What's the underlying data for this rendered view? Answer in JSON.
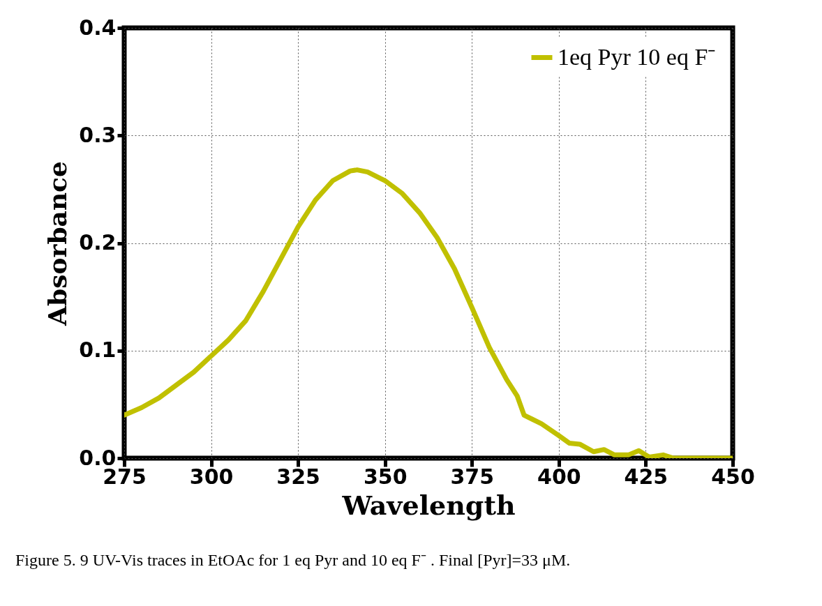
{
  "chart_data": {
    "type": "line",
    "xlabel": "Wavelength",
    "ylabel": "Absorbance",
    "annotations": [
      "Figure 5. 9 UV-Vis traces in EtOAc for 1 eq Pyr and 10 eq F⁻ . Final [Pyr]=33 μM."
    ],
    "xlim": [
      275,
      450
    ],
    "xticks": [
      275,
      300,
      325,
      350,
      375,
      400,
      425,
      450
    ],
    "ylim": [
      0,
      0.4
    ],
    "yticks": [
      {
        "value": 0,
        "label": "0.0"
      },
      0.1,
      0.2,
      0.3,
      0.4
    ],
    "grid": true,
    "legend": "top right",
    "line_style": "solid",
    "marker": "none",
    "series": [
      {
        "name": "1eq Pyr 10 eq F⁻",
        "color": "#c0c000",
        "x": [
          275,
          280,
          285,
          290,
          295,
          300,
          305,
          310,
          315,
          320,
          325,
          330,
          335,
          340,
          342,
          345,
          350,
          355,
          360,
          365,
          370,
          375,
          380,
          385,
          388,
          390,
          395,
          400,
          403,
          406,
          410,
          413,
          416,
          420,
          423,
          426,
          430,
          433,
          440,
          450
        ],
        "values": [
          0.04,
          0.047,
          0.056,
          0.068,
          0.08,
          0.095,
          0.11,
          0.128,
          0.155,
          0.185,
          0.215,
          0.24,
          0.258,
          0.267,
          0.268,
          0.266,
          0.258,
          0.246,
          0.228,
          0.205,
          0.176,
          0.14,
          0.103,
          0.073,
          0.058,
          0.04,
          0.032,
          0.021,
          0.014,
          0.013,
          0.006,
          0.008,
          0.003,
          0.003,
          0.007,
          0.001,
          0.003,
          0.0,
          0.0,
          0.0
        ]
      }
    ]
  }
}
